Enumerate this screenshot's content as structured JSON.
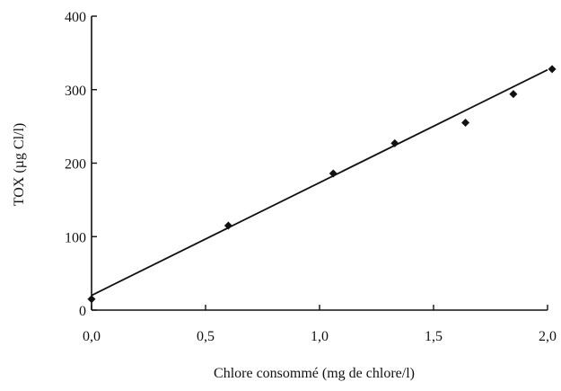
{
  "chart_data": {
    "type": "scatter",
    "title": "",
    "xlabel": "Chlore consommé (mg de chlore/l)",
    "ylabel": "TOX (µg Cl/l)",
    "xlim": [
      0,
      2.0
    ],
    "ylim": [
      0,
      400
    ],
    "x_ticks": [
      0,
      0.5,
      1.0,
      1.5,
      2.0
    ],
    "x_tick_labels": [
      "0,0",
      "0,5",
      "1,0",
      "1,5",
      "2,0"
    ],
    "y_ticks": [
      0,
      100,
      200,
      300,
      400
    ],
    "y_tick_labels": [
      "0",
      "100",
      "200",
      "300",
      "400"
    ],
    "grid": false,
    "series": [
      {
        "points": [
          {
            "x": 0.0,
            "y": 15
          },
          {
            "x": 0.6,
            "y": 115
          },
          {
            "x": 1.06,
            "y": 186
          },
          {
            "x": 1.33,
            "y": 227
          },
          {
            "x": 1.64,
            "y": 255
          },
          {
            "x": 1.85,
            "y": 294
          },
          {
            "x": 2.02,
            "y": 328
          }
        ]
      }
    ],
    "trendline": {
      "type": "linear",
      "x_start": 0.0,
      "y_start": 20,
      "x_end": 2.0,
      "y_end": 327
    },
    "colors": {
      "marks": "#111111",
      "axes": "#111111"
    }
  }
}
